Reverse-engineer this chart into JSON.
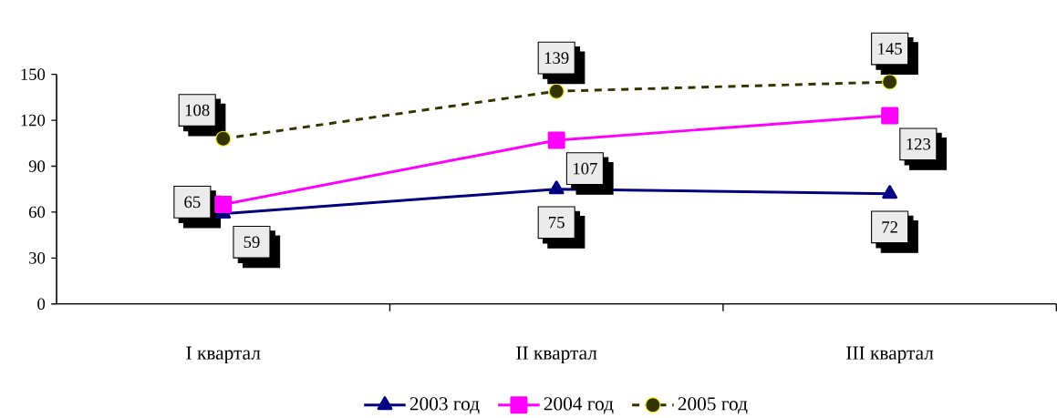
{
  "chart_data": {
    "type": "line",
    "categories": [
      "I квартал",
      "II квартал",
      "III квартал"
    ],
    "series": [
      {
        "name": "2003 год",
        "color": "#000080",
        "values": [
          59,
          75,
          72
        ],
        "marker": "triangle",
        "line_style": "solid"
      },
      {
        "name": "2004 год",
        "color": "#ff00ff",
        "values": [
          65,
          107,
          123
        ],
        "marker": "square",
        "line_style": "solid"
      },
      {
        "name": "2005 год",
        "color": "#333300",
        "values": [
          108,
          139,
          145
        ],
        "marker": "circle",
        "line_style": "dashed"
      }
    ],
    "ylim": [
      0,
      150
    ],
    "yticks": [
      0,
      30,
      60,
      90,
      120,
      150
    ],
    "grid": false,
    "legend": "bottom",
    "data_labels": true
  }
}
